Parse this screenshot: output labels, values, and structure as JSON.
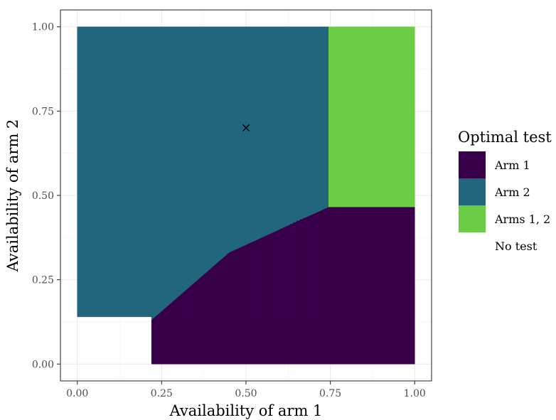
{
  "chart_data": {
    "type": "heatmap",
    "title": "",
    "xlabel": "Availability of arm 1",
    "ylabel": "Availability of arm 2",
    "xlim": [
      -0.05,
      1.05
    ],
    "ylim": [
      -0.05,
      1.05
    ],
    "x_ticks": [
      "0.00",
      "0.25",
      "0.50",
      "0.75",
      "1.00"
    ],
    "y_ticks": [
      "0.00",
      "0.25",
      "0.50",
      "0.75",
      "1.00"
    ],
    "x_tick_values": [
      0,
      0.25,
      0.5,
      0.75,
      1
    ],
    "y_tick_values": [
      0,
      0.25,
      0.5,
      0.75,
      1
    ],
    "grid": true,
    "legend": {
      "title": "Optimal test",
      "position": "right",
      "entries": [
        {
          "label": "Arm 1",
          "color": "#39004a"
        },
        {
          "label": "Arm 2",
          "color": "#22667d"
        },
        {
          "label": "Arms 1, 2",
          "color": "#6acd45"
        },
        {
          "label": "No test",
          "color": "#ffffff"
        }
      ]
    },
    "regions": [
      {
        "label": "Arm 2",
        "polygon": [
          [
            0.0,
            0.14
          ],
          [
            0.22,
            0.14
          ],
          [
            0.22,
            0.13
          ],
          [
            0.45,
            0.33
          ],
          [
            0.745,
            0.465
          ],
          [
            0.745,
            1.0
          ],
          [
            0.0,
            1.0
          ]
        ]
      },
      {
        "label": "Arms 1, 2",
        "polygon": [
          [
            0.745,
            0.465
          ],
          [
            1.0,
            0.465
          ],
          [
            1.0,
            1.0
          ],
          [
            0.745,
            1.0
          ]
        ]
      },
      {
        "label": "Arm 1",
        "polygon": [
          [
            0.22,
            0.0
          ],
          [
            1.0,
            0.0
          ],
          [
            1.0,
            0.465
          ],
          [
            0.745,
            0.465
          ],
          [
            0.45,
            0.33
          ],
          [
            0.22,
            0.13
          ]
        ]
      }
    ],
    "boundary_points": [
      [
        0.22,
        0.13
      ],
      [
        0.3,
        0.2
      ],
      [
        0.35,
        0.24
      ],
      [
        0.4,
        0.28
      ],
      [
        0.45,
        0.31
      ],
      [
        0.5,
        0.34
      ],
      [
        0.55,
        0.37
      ],
      [
        0.6,
        0.4
      ],
      [
        0.65,
        0.425
      ],
      [
        0.7,
        0.445
      ],
      [
        0.745,
        0.465
      ]
    ],
    "marker": {
      "x": 0.5,
      "y": 0.7,
      "symbol": "×"
    }
  }
}
